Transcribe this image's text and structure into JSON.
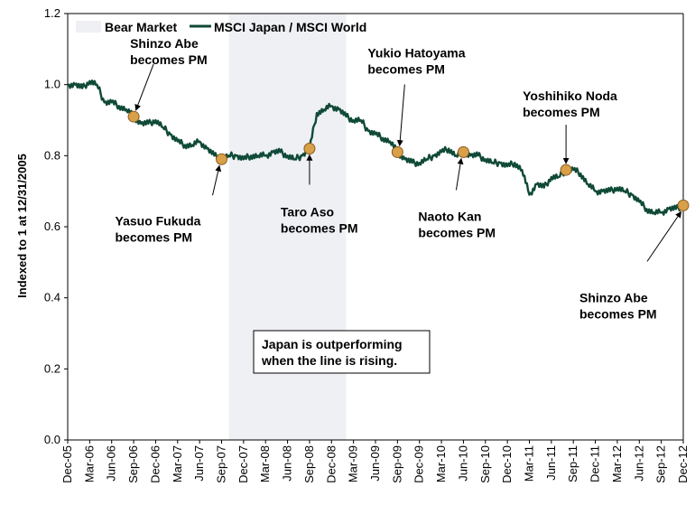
{
  "chart_data": {
    "type": "line",
    "title": "",
    "xlabel": "",
    "ylabel": "Indexed to 1 at 12/31/2005",
    "ylim": [
      0,
      1.2
    ],
    "yticks": [
      "0.0",
      "0.2",
      "0.4",
      "0.6",
      "0.8",
      "1.0",
      "1.2"
    ],
    "xticks": [
      "Dec-05",
      "Mar-06",
      "Jun-06",
      "Sep-06",
      "Dec-06",
      "Mar-07",
      "Jun-07",
      "Sep-07",
      "Dec-07",
      "Mar-08",
      "Jun-08",
      "Sep-08",
      "Dec-08",
      "Mar-09",
      "Jun-09",
      "Sep-09",
      "Dec-09",
      "Mar-10",
      "Jun-10",
      "Sep-10",
      "Dec-10",
      "Mar-11",
      "Jun-11",
      "Sep-11",
      "Dec-11",
      "Mar-12",
      "Jun-12",
      "Sep-12",
      "Dec-12"
    ],
    "grid": false,
    "legend_position": "top-left",
    "legend": [
      "Bear Market",
      "MSCI Japan / MSCI World"
    ],
    "colors": {
      "series": "#0f4a37",
      "bear": "#eef0f4",
      "marker": "#d9a04a",
      "marker_edge": "#8a5a1f"
    },
    "bear_market": {
      "start": "Oct-07",
      "end": "Feb-09"
    },
    "series": [
      {
        "name": "MSCI Japan / MSCI World",
        "x": [
          "Dec-05",
          "Jan-06",
          "Feb-06",
          "Mar-06",
          "Apr-06",
          "May-06",
          "Jun-06",
          "Jul-06",
          "Aug-06",
          "Sep-06",
          "Oct-06",
          "Nov-06",
          "Dec-06",
          "Jan-07",
          "Feb-07",
          "Mar-07",
          "Apr-07",
          "May-07",
          "Jun-07",
          "Jul-07",
          "Aug-07",
          "Sep-07",
          "Oct-07",
          "Nov-07",
          "Dec-07",
          "Jan-08",
          "Feb-08",
          "Mar-08",
          "Apr-08",
          "May-08",
          "Jun-08",
          "Jul-08",
          "Aug-08",
          "Sep-08",
          "Oct-08",
          "Nov-08",
          "Dec-08",
          "Jan-09",
          "Feb-09",
          "Mar-09",
          "Apr-09",
          "May-09",
          "Jun-09",
          "Jul-09",
          "Aug-09",
          "Sep-09",
          "Oct-09",
          "Nov-09",
          "Dec-09",
          "Jan-10",
          "Feb-10",
          "Mar-10",
          "Apr-10",
          "May-10",
          "Jun-10",
          "Jul-10",
          "Aug-10",
          "Sep-10",
          "Oct-10",
          "Nov-10",
          "Dec-10",
          "Jan-11",
          "Feb-11",
          "Mar-11",
          "Apr-11",
          "May-11",
          "Jun-11",
          "Jul-11",
          "Aug-11",
          "Sep-11",
          "Oct-11",
          "Nov-11",
          "Dec-11",
          "Jan-12",
          "Feb-12",
          "Mar-12",
          "Apr-12",
          "May-12",
          "Jun-12",
          "Jul-12",
          "Aug-12",
          "Sep-12",
          "Oct-12",
          "Nov-12",
          "Dec-12"
        ],
        "values": [
          1.0,
          1.0,
          0.99,
          1.01,
          1.0,
          0.95,
          0.95,
          0.94,
          0.93,
          0.91,
          0.89,
          0.89,
          0.9,
          0.88,
          0.86,
          0.84,
          0.83,
          0.83,
          0.84,
          0.82,
          0.8,
          0.79,
          0.8,
          0.8,
          0.79,
          0.8,
          0.8,
          0.8,
          0.81,
          0.81,
          0.8,
          0.79,
          0.8,
          0.82,
          0.92,
          0.93,
          0.94,
          0.93,
          0.91,
          0.9,
          0.9,
          0.87,
          0.86,
          0.85,
          0.84,
          0.81,
          0.79,
          0.78,
          0.78,
          0.79,
          0.8,
          0.81,
          0.82,
          0.8,
          0.81,
          0.8,
          0.8,
          0.79,
          0.78,
          0.78,
          0.77,
          0.78,
          0.76,
          0.69,
          0.72,
          0.71,
          0.74,
          0.74,
          0.76,
          0.76,
          0.75,
          0.72,
          0.7,
          0.7,
          0.7,
          0.71,
          0.7,
          0.69,
          0.67,
          0.65,
          0.64,
          0.64,
          0.65,
          0.65,
          0.66
        ]
      }
    ],
    "events": [
      {
        "x": "Sep-06",
        "y": 0.91,
        "label1": "Shinzo Abe",
        "label2": "becomes PM"
      },
      {
        "x": "Sep-07",
        "y": 0.79,
        "label1": "Yasuo Fukuda",
        "label2": "becomes PM"
      },
      {
        "x": "Sep-08",
        "y": 0.82,
        "label1": "Taro Aso",
        "label2": "becomes PM"
      },
      {
        "x": "Sep-09",
        "y": 0.81,
        "label1": "Yukio Hatoyama",
        "label2": "becomes PM"
      },
      {
        "x": "Jun-10",
        "y": 0.81,
        "label1": "Naoto Kan",
        "label2": "becomes PM"
      },
      {
        "x": "Aug-11",
        "y": 0.76,
        "label1": "Yoshihiko Noda",
        "label2": "becomes PM"
      },
      {
        "x": "Dec-12",
        "y": 0.66,
        "label1": "Shinzo Abe",
        "label2": "becomes PM"
      }
    ],
    "note": [
      "Japan is outperforming",
      "when the line is rising."
    ]
  }
}
